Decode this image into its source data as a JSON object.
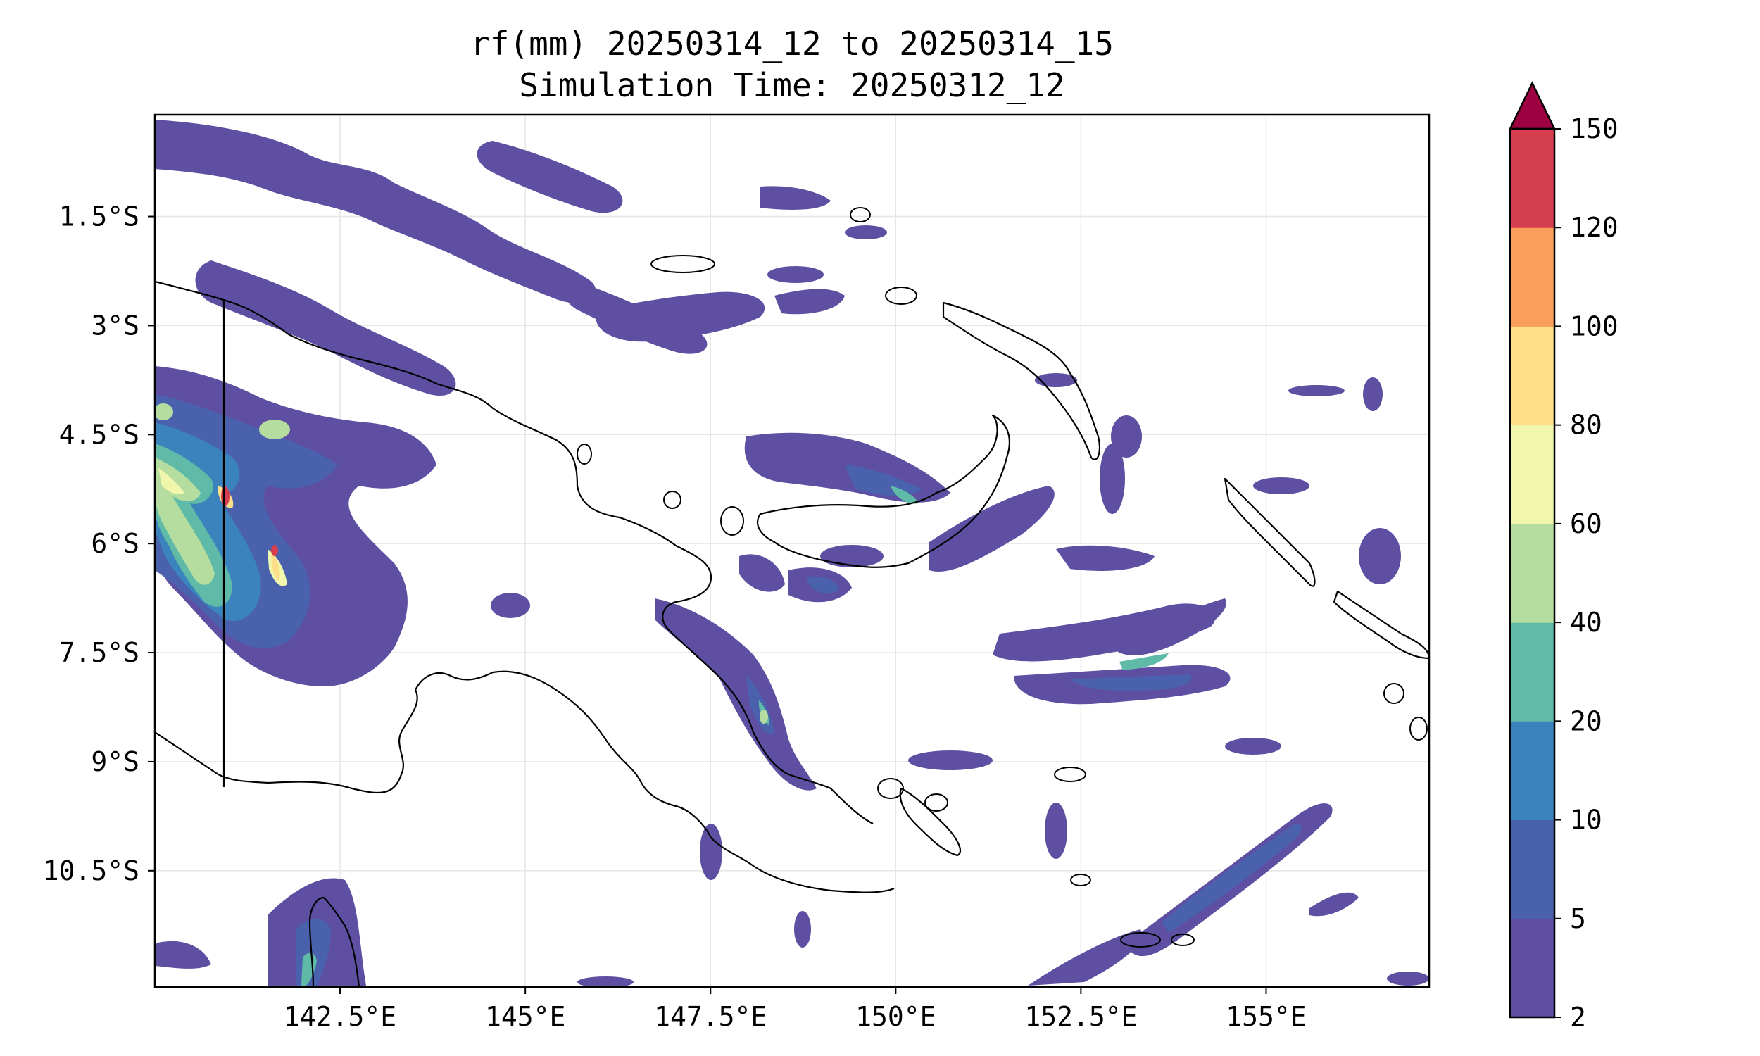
{
  "chart_data": {
    "type": "heatmap",
    "title": "rf(mm) 20250314_12 to 20250314_15",
    "subtitle": "Simulation Time: 20250312_12",
    "x_ticks": [
      "142.5°E",
      "145°E",
      "147.5°E",
      "150°E",
      "152.5°E",
      "155°E"
    ],
    "y_ticks": [
      "1.5°S",
      "3°S",
      "4.5°S",
      "6°S",
      "7.5°S",
      "9°S",
      "10.5°S"
    ],
    "x_tick_values": [
      142.5,
      145,
      147.5,
      150,
      152.5,
      155
    ],
    "y_tick_values": [
      -1.5,
      -3,
      -4.5,
      -6,
      -7.5,
      -9,
      -10.5
    ],
    "xlim": [
      140.0,
      157.2
    ],
    "ylim": [
      -12.1,
      -0.1
    ],
    "grid": true,
    "colorbar": {
      "levels": [
        2,
        5,
        10,
        20,
        40,
        60,
        80,
        100,
        120,
        150
      ],
      "tick_labels": [
        "2",
        "5",
        "10",
        "20",
        "40",
        "60",
        "80",
        "100",
        "120",
        "150"
      ],
      "colors": [
        "#5e4fa2",
        "#4a62ae",
        "#3b83bd",
        "#5fbaa8",
        "#b5dd9f",
        "#f0f7ad",
        "#fddf8a",
        "#f99f5b",
        "#d53e4f"
      ],
      "extend_color": "#9e0142",
      "extend": "max"
    },
    "rain_cells": [
      {
        "lon": 141.2,
        "lat": -1.3,
        "level": 1
      },
      {
        "lon": 142.8,
        "lat": -1.8,
        "level": 1
      },
      {
        "lon": 144.8,
        "lat": -2.2,
        "level": 1
      },
      {
        "lon": 146.5,
        "lat": -2.9,
        "level": 1
      },
      {
        "lon": 148.4,
        "lat": -3.2,
        "level": 1
      },
      {
        "lon": 140.4,
        "lat": -4.3,
        "level": 3
      },
      {
        "lon": 141.8,
        "lat": -4.6,
        "level": 2
      },
      {
        "lon": 140.9,
        "lat": -5.3,
        "level": 4
      },
      {
        "lon": 141.0,
        "lat": -5.4,
        "level": 8
      },
      {
        "lon": 141.9,
        "lat": -6.2,
        "level": 4
      },
      {
        "lon": 141.7,
        "lat": -6.1,
        "level": 8
      },
      {
        "lon": 142.1,
        "lat": -6.9,
        "level": 3
      },
      {
        "lon": 142.6,
        "lat": -7.3,
        "level": 2
      },
      {
        "lon": 149.8,
        "lat": -5.3,
        "level": 2
      },
      {
        "lon": 150.2,
        "lat": -5.5,
        "level": 3
      },
      {
        "lon": 148.4,
        "lat": -8.3,
        "level": 4
      },
      {
        "lon": 153.8,
        "lat": -7.6,
        "level": 3
      },
      {
        "lon": 154.5,
        "lat": -10.5,
        "level": 2
      },
      {
        "lon": 141.8,
        "lat": -11.6,
        "level": 1
      }
    ]
  }
}
